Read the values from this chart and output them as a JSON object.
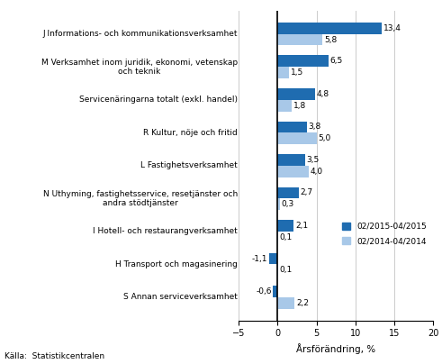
{
  "categories": [
    "J Informations- och kommunikationsverksamhet",
    "M Verksamhet inom juridik, ekonomi, vetenskap\noch teknik",
    "Servicenäringarna totalt (exkl. handel)",
    "R Kultur, nöje och fritid",
    "L Fastighetsverksamhet",
    "N Uthyming, fastighetsservice, resetjänster och\nandra stödtjänster",
    "I Hotell- och restaurangverksamhet",
    "H Transport och magasinering",
    "S Annan serviceverksamhet"
  ],
  "series1_label": "02/2015-04/2015",
  "series2_label": "02/2014-04/2014",
  "series1_values": [
    13.4,
    6.5,
    4.8,
    3.8,
    3.5,
    2.7,
    2.1,
    -1.1,
    -0.6
  ],
  "series2_values": [
    5.8,
    1.5,
    1.8,
    5.0,
    4.0,
    0.3,
    0.1,
    0.1,
    2.2
  ],
  "series1_color": "#1F6CB0",
  "series2_color": "#A8C8E8",
  "xlabel": "Årsförändring, %",
  "source": "Källa:  Statistikcentralen",
  "xlim": [
    -5,
    20
  ],
  "xticks": [
    -5,
    0,
    5,
    10,
    15,
    20
  ],
  "bar_height": 0.35,
  "background_color": "#ffffff",
  "grid_color": "#cccccc"
}
